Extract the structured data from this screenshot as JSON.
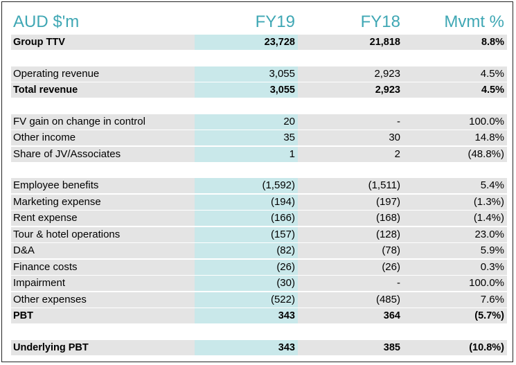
{
  "header": {
    "label": "AUD $'m",
    "fy19": "FY19",
    "fy18": "FY18",
    "mvmt": "Mvmt %"
  },
  "rows": [
    {
      "label": "Group TTV",
      "fy19": "23,728",
      "fy18": "21,818",
      "mvmt": "8.8%",
      "bold": true
    },
    {
      "label": "Operating revenue",
      "fy19": "3,055",
      "fy18": "2,923",
      "mvmt": "4.5%",
      "bold": false
    },
    {
      "label": "Total revenue",
      "fy19": "3,055",
      "fy18": "2,923",
      "mvmt": "4.5%",
      "bold": true
    },
    {
      "label": "FV gain on change in control",
      "fy19": "20",
      "fy18": "-",
      "mvmt": "100.0%",
      "bold": false
    },
    {
      "label": "Other income",
      "fy19": "35",
      "fy18": "30",
      "mvmt": "14.8%",
      "bold": false
    },
    {
      "label": "Share of JV/Associates",
      "fy19": "1",
      "fy18": "2",
      "mvmt": "(48.8%)",
      "bold": false
    },
    {
      "label": "Employee benefits",
      "fy19": "(1,592)",
      "fy18": "(1,511)",
      "mvmt": "5.4%",
      "bold": false
    },
    {
      "label": "Marketing expense",
      "fy19": "(194)",
      "fy18": "(197)",
      "mvmt": "(1.3%)",
      "bold": false
    },
    {
      "label": "Rent expense",
      "fy19": "(166)",
      "fy18": "(168)",
      "mvmt": "(1.4%)",
      "bold": false
    },
    {
      "label": "Tour & hotel operations",
      "fy19": "(157)",
      "fy18": "(128)",
      "mvmt": "23.0%",
      "bold": false
    },
    {
      "label": "D&A",
      "fy19": "(82)",
      "fy18": "(78)",
      "mvmt": "5.9%",
      "bold": false
    },
    {
      "label": "Finance costs",
      "fy19": "(26)",
      "fy18": "(26)",
      "mvmt": "0.3%",
      "bold": false
    },
    {
      "label": "Impairment",
      "fy19": "(30)",
      "fy18": "-",
      "mvmt": "100.0%",
      "bold": false
    },
    {
      "label": "Other expenses",
      "fy19": "(522)",
      "fy18": "(485)",
      "mvmt": "7.6%",
      "bold": false
    },
    {
      "label": "PBT",
      "fy19": "343",
      "fy18": "364",
      "mvmt": "(5.7%)",
      "bold": true
    },
    {
      "label": "Underlying PBT",
      "fy19": "343",
      "fy18": "385",
      "mvmt": "(10.8%)",
      "bold": true
    }
  ],
  "colors": {
    "header_text": "#3fa7b4",
    "shade_grey": "#e4e4e4",
    "shade_teal": "#c9e8ea"
  }
}
